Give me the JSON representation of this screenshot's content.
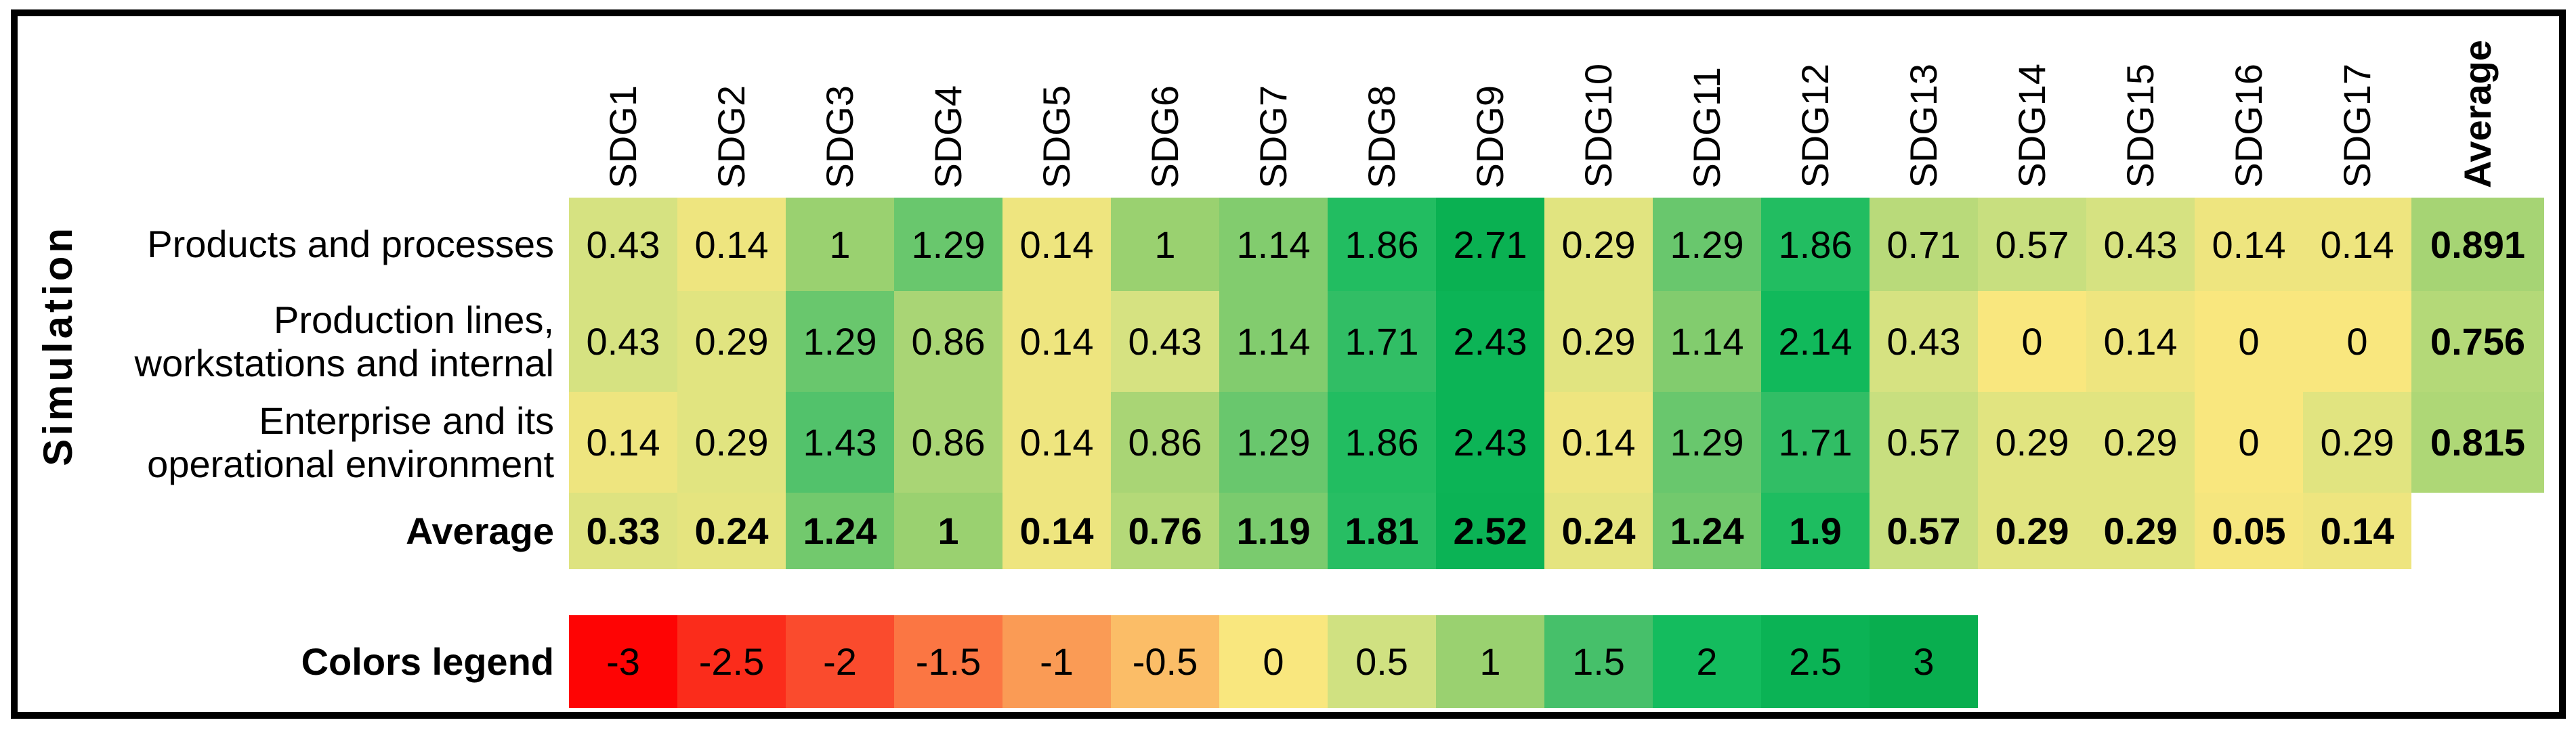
{
  "chart_data": {
    "type": "heatmap",
    "title": "",
    "y_axis_label": "Simulation",
    "x_categories": [
      "SDG1",
      "SDG2",
      "SDG3",
      "SDG4",
      "SDG5",
      "SDG6",
      "SDG7",
      "SDG8",
      "SDG9",
      "SDG10",
      "SDG11",
      "SDG12",
      "SDG13",
      "SDG14",
      "SDG15",
      "SDG16",
      "SDG17"
    ],
    "average_column_label": "Average",
    "rows": [
      {
        "name": "Products and processes",
        "label_lines": [
          "Products and processes"
        ],
        "values": [
          0.43,
          0.14,
          1,
          1.29,
          0.14,
          1,
          1.14,
          1.86,
          2.71,
          0.29,
          1.29,
          1.86,
          0.71,
          0.57,
          0.43,
          0.14,
          0.14
        ],
        "row_average": 0.891
      },
      {
        "name": "Production lines, workstations and internal",
        "label_lines": [
          "Production lines,",
          "workstations and internal"
        ],
        "values": [
          0.43,
          0.29,
          1.29,
          0.86,
          0.14,
          0.43,
          1.14,
          1.71,
          2.43,
          0.29,
          1.14,
          2.14,
          0.43,
          0,
          0.14,
          0,
          0
        ],
        "row_average": 0.756
      },
      {
        "name": "Enterprise and its operational environment",
        "label_lines": [
          "Enterprise and its",
          "operational environment"
        ],
        "values": [
          0.14,
          0.29,
          1.43,
          0.86,
          0.14,
          0.86,
          1.29,
          1.86,
          2.43,
          0.14,
          1.29,
          1.71,
          0.57,
          0.29,
          0.29,
          0,
          0.29
        ],
        "row_average": 0.815
      }
    ],
    "average_row": {
      "label": "Average",
      "values": [
        0.33,
        0.24,
        1.24,
        1,
        0.14,
        0.76,
        1.19,
        1.81,
        2.52,
        0.24,
        1.24,
        1.9,
        0.57,
        0.29,
        0.29,
        0.05,
        0.14
      ]
    },
    "color_scale": {
      "legend_label": "Colors legend",
      "domain": [
        -3,
        3
      ],
      "stops": [
        {
          "value": -3,
          "color": "#FE0404"
        },
        {
          "value": -2.5,
          "color": "#FB2C1B"
        },
        {
          "value": -2,
          "color": "#FA4B2D"
        },
        {
          "value": -1.5,
          "color": "#FB7643"
        },
        {
          "value": -1,
          "color": "#FA9B55"
        },
        {
          "value": -0.5,
          "color": "#FBBD67"
        },
        {
          "value": 0,
          "color": "#F9E77E"
        },
        {
          "value": 0.5,
          "color": "#D0E181"
        },
        {
          "value": 1,
          "color": "#9AD170"
        },
        {
          "value": 1.5,
          "color": "#46C06A"
        },
        {
          "value": 2,
          "color": "#14BC5E"
        },
        {
          "value": 2.5,
          "color": "#0BB355"
        },
        {
          "value": 3,
          "color": "#09AE4F"
        }
      ]
    },
    "layout": {
      "legend_position": "bottom",
      "grid": false
    }
  },
  "colors": {
    "border": "#000000",
    "background": "#FFFFFF",
    "text": "#000000"
  }
}
